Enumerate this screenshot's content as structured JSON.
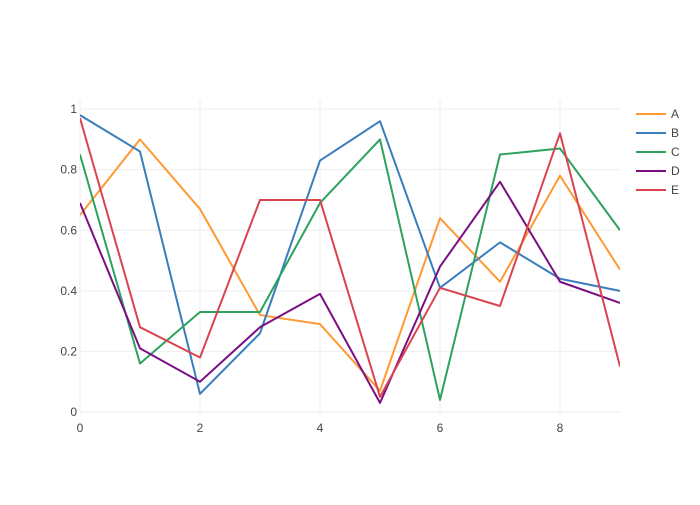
{
  "chart_data": {
    "type": "line",
    "x": [
      0,
      1,
      2,
      3,
      4,
      5,
      6,
      7,
      8,
      9
    ],
    "xlim": [
      0,
      9
    ],
    "ylim": [
      0,
      1.03
    ],
    "x_ticks": [
      0,
      2,
      4,
      6,
      8
    ],
    "y_ticks": [
      0,
      0.2,
      0.4,
      0.6,
      0.8,
      1
    ],
    "x_tick_labels": [
      "0",
      "2",
      "4",
      "6",
      "8"
    ],
    "y_tick_labels": [
      "0",
      "0.2",
      "0.4",
      "0.6",
      "0.8",
      "1"
    ],
    "grid": true,
    "legend_position": "right",
    "title": "",
    "xlabel": "",
    "ylabel": "",
    "series": [
      {
        "name": "A",
        "color": "#ff9933",
        "values": [
          0.65,
          0.9,
          0.67,
          0.32,
          0.29,
          0.07,
          0.64,
          0.43,
          0.78,
          0.47
        ]
      },
      {
        "name": "B",
        "color": "#3a7dbd",
        "values": [
          0.98,
          0.86,
          0.06,
          0.26,
          0.83,
          0.96,
          0.41,
          0.56,
          0.44,
          0.4
        ]
      },
      {
        "name": "C",
        "color": "#2ca25f",
        "values": [
          0.85,
          0.16,
          0.33,
          0.33,
          0.69,
          0.9,
          0.04,
          0.85,
          0.87,
          0.6
        ]
      },
      {
        "name": "D",
        "color": "#7b0f82",
        "values": [
          0.69,
          0.21,
          0.1,
          0.28,
          0.39,
          0.03,
          0.48,
          0.76,
          0.43,
          0.36
        ]
      },
      {
        "name": "E",
        "color": "#d9444f",
        "values": [
          0.97,
          0.28,
          0.18,
          0.7,
          0.7,
          0.05,
          0.41,
          0.35,
          0.92,
          0.15
        ]
      }
    ]
  }
}
